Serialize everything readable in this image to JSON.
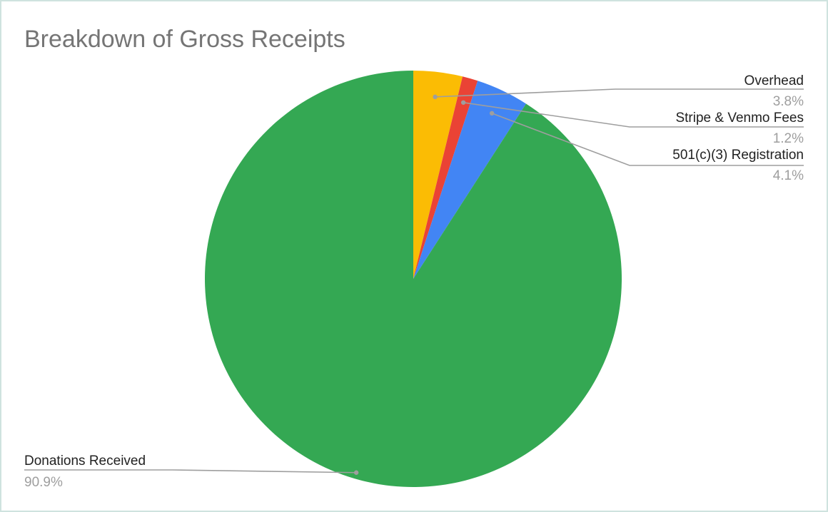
{
  "chart_data": {
    "type": "pie",
    "title": "Breakdown of Gross Receipts",
    "slices": [
      {
        "label": "Overhead",
        "value": 3.8,
        "display": "3.8%",
        "color": "#fbbc04"
      },
      {
        "label": "Stripe & Venmo Fees",
        "value": 1.2,
        "display": "1.2%",
        "color": "#ea4335"
      },
      {
        "label": "501(c)(3) Registration",
        "value": 4.1,
        "display": "4.1%",
        "color": "#4285f4"
      },
      {
        "label": "Donations Received",
        "value": 90.9,
        "display": "90.9%",
        "color": "#34a853"
      }
    ],
    "legend": "none",
    "start_angle": "12 o'clock",
    "direction": "clockwise"
  }
}
